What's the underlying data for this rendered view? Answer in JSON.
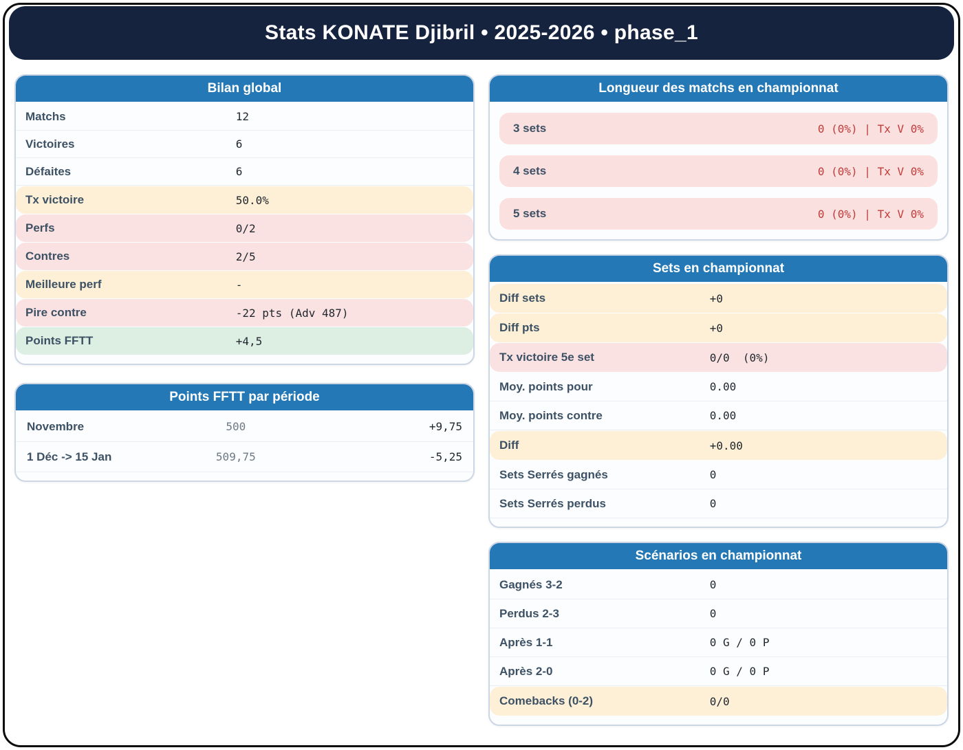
{
  "title": "Stats KONATE Djibril • 2025-2026 • phase_1",
  "colors": {
    "title_bar_navy": "#16233e",
    "card_header_blue": "#2478b5",
    "highlight_cream": "#fdf0d6",
    "highlight_pink": "#fbe2e2",
    "highlight_green": "#ddeee2",
    "danger_text_red": "#c13b38",
    "label_slate": "#3d5165"
  },
  "cards": {
    "bilan": {
      "title": "Bilan global",
      "rows": [
        {
          "label": "Matchs",
          "value": "12",
          "highlight": "none"
        },
        {
          "label": "Victoires",
          "value": "6",
          "highlight": "none"
        },
        {
          "label": "Défaites",
          "value": "6",
          "highlight": "none"
        },
        {
          "label": "Tx victoire",
          "value": "50.0%",
          "highlight": "cream"
        },
        {
          "label": "Perfs",
          "value": "0/2",
          "highlight": "pink"
        },
        {
          "label": "Contres",
          "value": "2/5",
          "highlight": "pink"
        },
        {
          "label": "Meilleure perf",
          "value": "-",
          "highlight": "cream"
        },
        {
          "label": "Pire contre",
          "value": "-22 pts (Adv 487)",
          "highlight": "pink"
        },
        {
          "label": "Points FFTT",
          "value": "+4,5",
          "highlight": "green"
        }
      ]
    },
    "periode": {
      "title": "Points FFTT par période",
      "rows": [
        {
          "label": "Novembre",
          "points": "500",
          "delta": "+9,75"
        },
        {
          "label": "1 Déc -> 15 Jan",
          "points": "509,75",
          "delta": "-5,25"
        }
      ]
    },
    "longueur": {
      "title": "Longueur des matchs en championnat",
      "rows": [
        {
          "label": "3 sets",
          "value": "0 (0%) | Tx V 0%"
        },
        {
          "label": "4 sets",
          "value": "0 (0%) | Tx V 0%"
        },
        {
          "label": "5 sets",
          "value": "0 (0%) | Tx V 0%"
        }
      ]
    },
    "sets": {
      "title": "Sets en championnat",
      "rows": [
        {
          "label": "Diff sets",
          "value": "+0",
          "highlight": "cream"
        },
        {
          "label": "Diff pts",
          "value": "+0",
          "highlight": "cream"
        },
        {
          "label": "Tx victoire 5e set",
          "value": "0/0  (0%)",
          "highlight": "pink"
        },
        {
          "label": "Moy. points pour",
          "value": "0.00",
          "highlight": "none"
        },
        {
          "label": "Moy. points contre",
          "value": "0.00",
          "highlight": "none"
        },
        {
          "label": "Diff",
          "value": "+0.00",
          "highlight": "cream"
        },
        {
          "label": "Sets Serrés gagnés",
          "value": "0",
          "highlight": "none"
        },
        {
          "label": "Sets Serrés perdus",
          "value": "0",
          "highlight": "none"
        }
      ]
    },
    "scenarios": {
      "title": "Scénarios en championnat",
      "rows": [
        {
          "label": "Gagnés 3-2",
          "value": "0",
          "highlight": "none"
        },
        {
          "label": "Perdus 2-3",
          "value": "0",
          "highlight": "none"
        },
        {
          "label": "Après 1-1",
          "value": "0 G / 0 P",
          "highlight": "none"
        },
        {
          "label": "Après 2-0",
          "value": "0 G / 0 P",
          "highlight": "none"
        },
        {
          "label": "Comebacks (0-2)",
          "value": "0/0",
          "highlight": "cream"
        }
      ]
    }
  }
}
